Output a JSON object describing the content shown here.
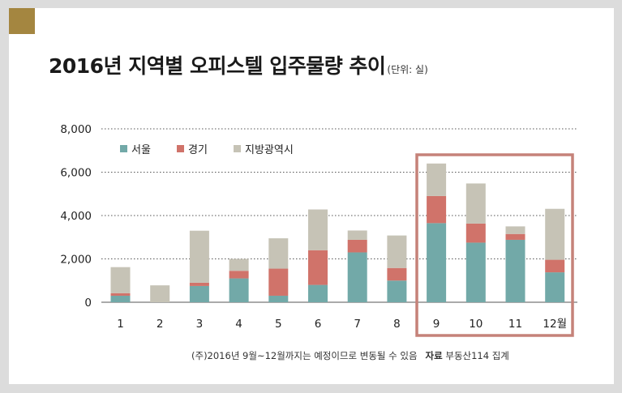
{
  "title": "2016년 지역별 오피스텔 입주물량 추이",
  "unit": "(단위: 실)",
  "note": "(주)2016년 9월~12월까지는 예정이므로 변동될 수 있음",
  "source_label": "자료",
  "source": "부동산114 집계",
  "colors": {
    "seoul": "#72a9a8",
    "gyeonggi": "#d0736a",
    "regional": "#c6c3b6",
    "highlight": "#c58279",
    "accent": "#a48640"
  },
  "chart_data": {
    "type": "bar",
    "stacked": true,
    "categories": [
      "1",
      "2",
      "3",
      "4",
      "5",
      "6",
      "7",
      "8",
      "9",
      "10",
      "11",
      "12월"
    ],
    "y_ticks": [
      "8,000",
      "6,000",
      "4,000",
      "2,000",
      "0"
    ],
    "ylim": [
      0,
      8000
    ],
    "grid": "dotted horizontal",
    "legend_position": "top-left",
    "series": [
      {
        "name": "서울",
        "color": "#72a9a8",
        "values": [
          300,
          0,
          750,
          1100,
          300,
          800,
          2300,
          1000,
          3650,
          2750,
          2880,
          1380
        ]
      },
      {
        "name": "경기",
        "color": "#d0736a",
        "values": [
          120,
          0,
          150,
          350,
          1250,
          1600,
          580,
          580,
          1250,
          880,
          270,
          580
        ]
      },
      {
        "name": "지방광역시",
        "color": "#c6c3b6",
        "values": [
          1200,
          780,
          2400,
          550,
          1400,
          1880,
          430,
          1500,
          1500,
          1850,
          350,
          2350
        ]
      }
    ],
    "highlight_categories": [
      "9",
      "10",
      "11",
      "12월"
    ]
  }
}
